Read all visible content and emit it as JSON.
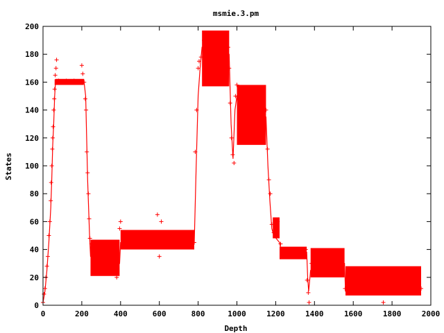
{
  "chart_data": {
    "type": "scatter",
    "title": "msmie.3.pm",
    "xlabel": "Depth",
    "ylabel": "States",
    "xlim": [
      0,
      2000
    ],
    "ylim": [
      0,
      200
    ],
    "xticks": [
      "0",
      "200",
      "400",
      "600",
      "800",
      "1000",
      "1200",
      "1400",
      "1600",
      "1800",
      "2000"
    ],
    "yticks": [
      "0",
      "20",
      "40",
      "60",
      "80",
      "100",
      "120",
      "140",
      "160",
      "180",
      "200"
    ],
    "grid": false,
    "legend": "none",
    "marker": "+",
    "color": "#ff0000",
    "bands": [
      {
        "x0": 60,
        "x1": 210,
        "ylow": 158,
        "yhigh": 162
      },
      {
        "x0": 245,
        "x1": 395,
        "ylow": 21,
        "yhigh": 47
      },
      {
        "x0": 400,
        "x1": 780,
        "ylow": 40,
        "yhigh": 54
      },
      {
        "x0": 820,
        "x1": 960,
        "ylow": 157,
        "yhigh": 197
      },
      {
        "x0": 1000,
        "x1": 1150,
        "ylow": 115,
        "yhigh": 158
      },
      {
        "x0": 1185,
        "x1": 1220,
        "ylow": 48,
        "yhigh": 63
      },
      {
        "x0": 1220,
        "x1": 1360,
        "ylow": 33,
        "yhigh": 42
      },
      {
        "x0": 1380,
        "x1": 1555,
        "ylow": 20,
        "yhigh": 41
      },
      {
        "x0": 1560,
        "x1": 1950,
        "ylow": 7,
        "yhigh": 28
      }
    ],
    "trace": [
      [
        0,
        2
      ],
      [
        10,
        10
      ],
      [
        20,
        25
      ],
      [
        30,
        45
      ],
      [
        40,
        70
      ],
      [
        45,
        90
      ],
      [
        50,
        115
      ],
      [
        55,
        130
      ],
      [
        60,
        150
      ],
      [
        65,
        162
      ],
      [
        210,
        162
      ],
      [
        220,
        150
      ],
      [
        225,
        120
      ],
      [
        230,
        90
      ],
      [
        235,
        70
      ],
      [
        240,
        50
      ],
      [
        245,
        35
      ],
      [
        395,
        30
      ],
      [
        400,
        45
      ],
      [
        780,
        45
      ],
      [
        790,
        100
      ],
      [
        800,
        150
      ],
      [
        810,
        170
      ],
      [
        820,
        185
      ],
      [
        960,
        180
      ],
      [
        970,
        130
      ],
      [
        980,
        105
      ],
      [
        990,
        140
      ],
      [
        1000,
        150
      ],
      [
        1150,
        135
      ],
      [
        1160,
        100
      ],
      [
        1170,
        75
      ],
      [
        1180,
        55
      ],
      [
        1190,
        50
      ],
      [
        1220,
        45
      ],
      [
        1230,
        38
      ],
      [
        1360,
        38
      ],
      [
        1365,
        20
      ],
      [
        1370,
        10
      ],
      [
        1380,
        25
      ],
      [
        1555,
        30
      ],
      [
        1560,
        10
      ],
      [
        1950,
        10
      ]
    ],
    "points": [
      [
        0,
        2
      ],
      [
        5,
        8
      ],
      [
        10,
        12
      ],
      [
        15,
        20
      ],
      [
        20,
        28
      ],
      [
        25,
        35
      ],
      [
        30,
        50
      ],
      [
        35,
        60
      ],
      [
        40,
        75
      ],
      [
        42,
        88
      ],
      [
        45,
        100
      ],
      [
        48,
        112
      ],
      [
        50,
        120
      ],
      [
        52,
        128
      ],
      [
        55,
        140
      ],
      [
        58,
        148
      ],
      [
        60,
        155
      ],
      [
        63,
        165
      ],
      [
        67,
        170
      ],
      [
        70,
        176
      ],
      [
        80,
        161
      ],
      [
        120,
        161
      ],
      [
        160,
        161
      ],
      [
        200,
        172
      ],
      [
        205,
        166
      ],
      [
        212,
        160
      ],
      [
        218,
        148
      ],
      [
        222,
        140
      ],
      [
        226,
        110
      ],
      [
        230,
        95
      ],
      [
        234,
        80
      ],
      [
        238,
        62
      ],
      [
        242,
        48
      ],
      [
        250,
        44
      ],
      [
        300,
        25
      ],
      [
        350,
        30
      ],
      [
        380,
        20
      ],
      [
        395,
        55
      ],
      [
        400,
        60
      ],
      [
        420,
        48
      ],
      [
        500,
        45
      ],
      [
        590,
        65
      ],
      [
        600,
        35
      ],
      [
        610,
        60
      ],
      [
        700,
        48
      ],
      [
        780,
        45
      ],
      [
        785,
        110
      ],
      [
        792,
        140
      ],
      [
        800,
        170
      ],
      [
        805,
        175
      ],
      [
        815,
        178
      ],
      [
        830,
        190
      ],
      [
        870,
        195
      ],
      [
        920,
        193
      ],
      [
        955,
        185
      ],
      [
        960,
        170
      ],
      [
        965,
        145
      ],
      [
        972,
        120
      ],
      [
        978,
        108
      ],
      [
        985,
        102
      ],
      [
        993,
        150
      ],
      [
        1000,
        158
      ],
      [
        1050,
        130
      ],
      [
        1120,
        150
      ],
      [
        1150,
        140
      ],
      [
        1158,
        112
      ],
      [
        1165,
        90
      ],
      [
        1172,
        80
      ],
      [
        1180,
        58
      ],
      [
        1190,
        52
      ],
      [
        1210,
        60
      ],
      [
        1225,
        44
      ],
      [
        1300,
        38
      ],
      [
        1355,
        40
      ],
      [
        1362,
        18
      ],
      [
        1368,
        9
      ],
      [
        1372,
        2
      ],
      [
        1385,
        30
      ],
      [
        1450,
        35
      ],
      [
        1540,
        28
      ],
      [
        1558,
        12
      ],
      [
        1600,
        20
      ],
      [
        1700,
        15
      ],
      [
        1755,
        2
      ],
      [
        1800,
        22
      ],
      [
        1900,
        18
      ],
      [
        1950,
        12
      ]
    ]
  }
}
